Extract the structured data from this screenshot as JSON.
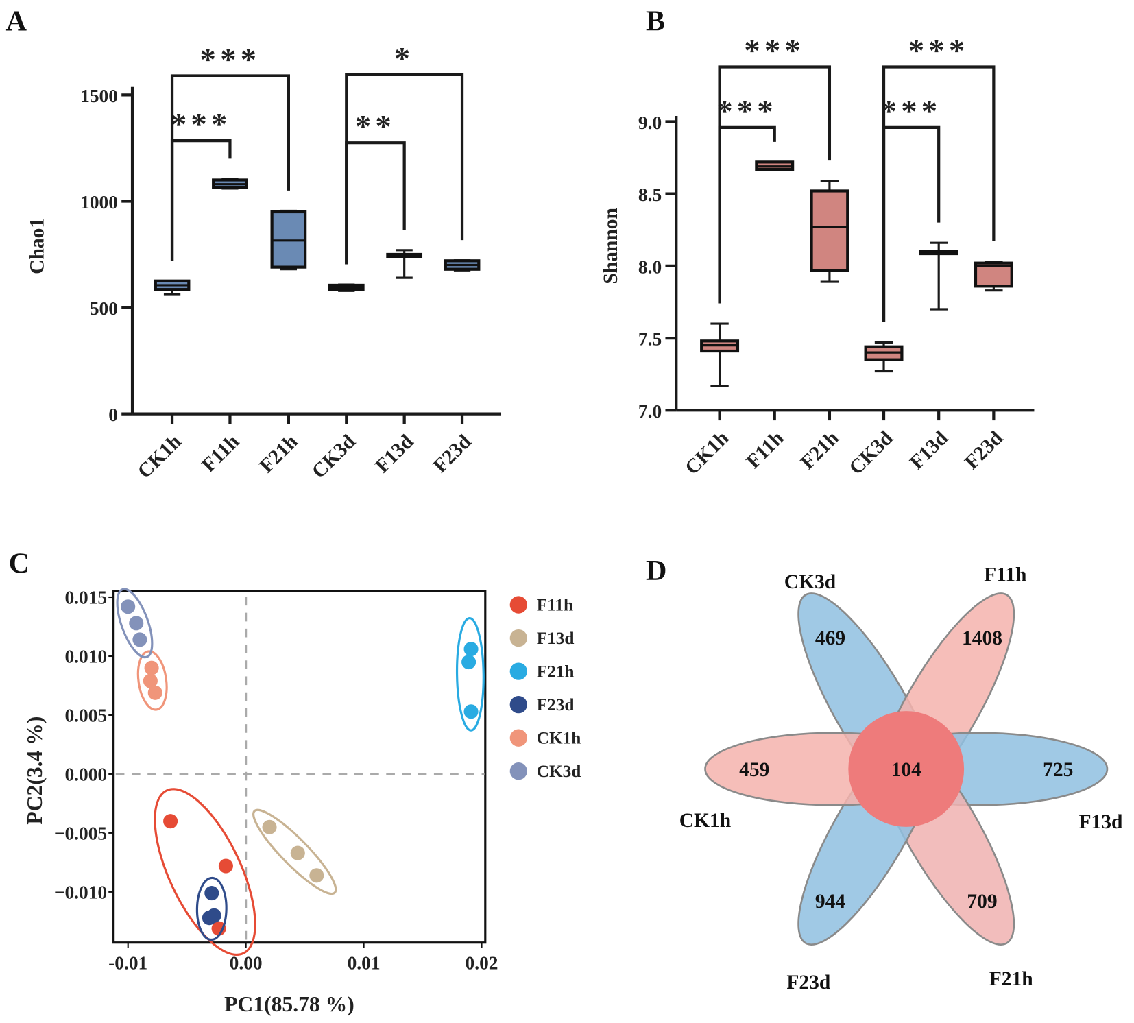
{
  "chart_data": [
    {
      "panel": "A",
      "type": "box",
      "ylabel": "Chao1",
      "ylim": [
        0,
        1500
      ],
      "yticks": [
        "0",
        "500",
        "1000",
        "1500"
      ],
      "ytick_values": [
        0,
        500,
        1000,
        1500
      ],
      "categories": [
        "CK1h",
        "F11h",
        "F21h",
        "CK3d",
        "F13d",
        "F23d"
      ],
      "color": "#6a8ab4",
      "boxes": [
        {
          "min": 563,
          "q1": 585,
          "median": 605,
          "q3": 625,
          "max": 625
        },
        {
          "min": 1060,
          "q1": 1065,
          "median": 1080,
          "q3": 1100,
          "max": 1105
        },
        {
          "min": 680,
          "q1": 690,
          "median": 815,
          "q3": 950,
          "max": 955
        },
        {
          "min": 578,
          "q1": 583,
          "median": 592,
          "q3": 605,
          "max": 608
        },
        {
          "min": 640,
          "q1": 745,
          "median": 748,
          "q3": 750,
          "max": 770
        },
        {
          "min": 675,
          "q1": 680,
          "median": 700,
          "q3": 720,
          "max": 722
        }
      ],
      "significance": [
        {
          "from": 0,
          "to": 1,
          "level": 1285,
          "stars": "***"
        },
        {
          "from": 0,
          "to": 2,
          "level": 1590,
          "stars": "***"
        },
        {
          "from": 3,
          "to": 4,
          "level": 1275,
          "stars": "**"
        },
        {
          "from": 3,
          "to": 5,
          "level": 1595,
          "stars": "*"
        }
      ]
    },
    {
      "panel": "B",
      "type": "box",
      "ylabel": "Shannon",
      "ylim": [
        7.0,
        9.0
      ],
      "yticks": [
        "7.0",
        "7.5",
        "8.0",
        "8.5",
        "9.0"
      ],
      "ytick_values": [
        7.0,
        7.5,
        8.0,
        8.5,
        9.0
      ],
      "categories": [
        "CK1h",
        "F11h",
        "F21h",
        "CK3d",
        "F13d",
        "F23d"
      ],
      "color": "#d08580",
      "boxes": [
        {
          "min": 7.17,
          "q1": 7.41,
          "median": 7.45,
          "q3": 7.48,
          "max": 7.6
        },
        {
          "min": 8.67,
          "q1": 8.67,
          "median": 8.69,
          "q3": 8.72,
          "max": 8.72
        },
        {
          "min": 7.89,
          "q1": 7.97,
          "median": 8.27,
          "q3": 8.52,
          "max": 8.59
        },
        {
          "min": 7.27,
          "q1": 7.35,
          "median": 7.4,
          "q3": 7.44,
          "max": 7.47
        },
        {
          "min": 7.7,
          "q1": 8.1,
          "median": 8.1,
          "q3": 8.1,
          "max": 8.16
        },
        {
          "min": 7.83,
          "q1": 7.86,
          "median": 8.0,
          "q3": 8.02,
          "max": 8.03
        }
      ],
      "significance": [
        {
          "from": 0,
          "to": 1,
          "level": 8.96,
          "stars": "***"
        },
        {
          "from": 0,
          "to": 2,
          "level": 9.38,
          "stars": "***"
        },
        {
          "from": 3,
          "to": 4,
          "level": 8.96,
          "stars": "***"
        },
        {
          "from": 3,
          "to": 5,
          "level": 9.38,
          "stars": "***"
        }
      ]
    },
    {
      "panel": "C",
      "type": "scatter",
      "xlabel": "PC1(85.78 %)",
      "ylabel": "PC2(3.4 %)",
      "xlim": [
        -0.0112,
        0.0203
      ],
      "ylim": [
        -0.0143,
        0.0155
      ],
      "xticks": [
        "-0.01",
        "0.00",
        "0.01",
        "0.02"
      ],
      "xtick_values": [
        -0.01,
        0.0,
        0.01,
        0.02
      ],
      "yticks": [
        "0.015",
        "0.010",
        "0.005",
        "0.000",
        "−0.005",
        "−0.010"
      ],
      "ytick_values": [
        0.015,
        0.01,
        0.005,
        0.0,
        -0.005,
        -0.01
      ],
      "legend_position": "right",
      "series": [
        {
          "name": "F11h",
          "color": "#e64b35",
          "points": [
            [
              -0.0064,
              -0.004
            ],
            [
              -0.0017,
              -0.0078
            ],
            [
              -0.0023,
              -0.0131
            ]
          ]
        },
        {
          "name": "F13d",
          "color": "#c8b393",
          "points": [
            [
              0.002,
              -0.0045
            ],
            [
              0.0044,
              -0.0067
            ],
            [
              0.006,
              -0.0086
            ]
          ]
        },
        {
          "name": "F21h",
          "color": "#29abe2",
          "points": [
            [
              0.0191,
              0.0106
            ],
            [
              0.0189,
              0.0095
            ],
            [
              0.0191,
              0.0053
            ]
          ]
        },
        {
          "name": "F23d",
          "color": "#2f4b8a",
          "points": [
            [
              -0.0029,
              -0.0101
            ],
            [
              -0.0031,
              -0.0122
            ],
            [
              -0.0027,
              -0.012
            ]
          ]
        },
        {
          "name": "CK1h",
          "color": "#f0957a",
          "points": [
            [
              -0.008,
              0.009
            ],
            [
              -0.0081,
              0.0079
            ],
            [
              -0.0077,
              0.0069
            ]
          ]
        },
        {
          "name": "CK3d",
          "color": "#8392ba",
          "points": [
            [
              -0.01,
              0.0142
            ],
            [
              -0.0093,
              0.0128
            ],
            [
              -0.009,
              0.0114
            ]
          ]
        }
      ]
    },
    {
      "panel": "D",
      "type": "venn-flower",
      "core": {
        "value": "104",
        "color": "#ee7b7b"
      },
      "petals": [
        {
          "name": "CK3d",
          "value": "469",
          "color": "#8fbfe0"
        },
        {
          "name": "F11h",
          "value": "1408",
          "color": "#f4b3ad"
        },
        {
          "name": "F13d",
          "value": "725",
          "color": "#8fbfe0"
        },
        {
          "name": "F21h",
          "value": "709",
          "color": "#f0b2b0"
        },
        {
          "name": "F23d",
          "value": "944",
          "color": "#8fbfe0"
        },
        {
          "name": "CK1h",
          "value": "459",
          "color": "#f4b3ad"
        }
      ]
    }
  ],
  "panels": {
    "a": "A",
    "b": "B",
    "c": "C",
    "d": "D"
  }
}
